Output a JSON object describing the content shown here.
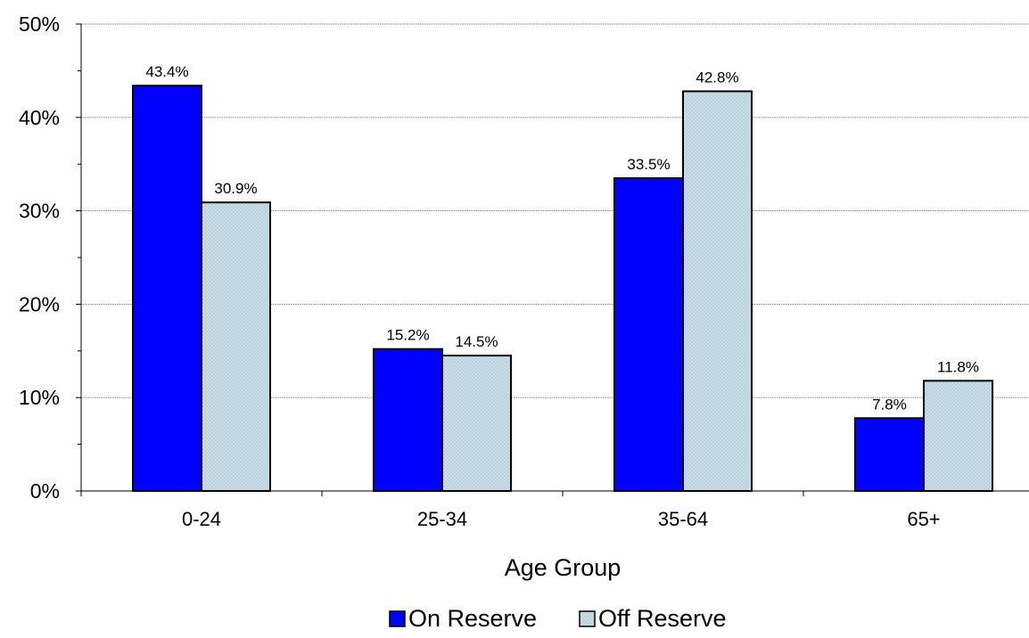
{
  "chart_data": {
    "type": "bar",
    "categories": [
      "0-24",
      "25-34",
      "35-64",
      "65+"
    ],
    "series": [
      {
        "name": "On Reserve",
        "values": [
          43.4,
          15.2,
          33.5,
          7.8
        ],
        "labels": [
          "43.4%",
          "15.2%",
          "33.5%",
          "7.8%"
        ],
        "color": "#0000ff"
      },
      {
        "name": "Off Reserve",
        "values": [
          30.9,
          14.5,
          42.8,
          11.8
        ],
        "labels": [
          "30.9%",
          "14.5%",
          "42.8%",
          "11.8%"
        ],
        "color": "#cce2ec"
      }
    ],
    "title": "",
    "xlabel": "Age Group",
    "ylabel": "",
    "ylim": [
      0,
      50
    ],
    "yticks": [
      "0%",
      "10%",
      "20%",
      "30%",
      "40%",
      "50%"
    ],
    "grid": true,
    "legend_position": "bottom"
  }
}
